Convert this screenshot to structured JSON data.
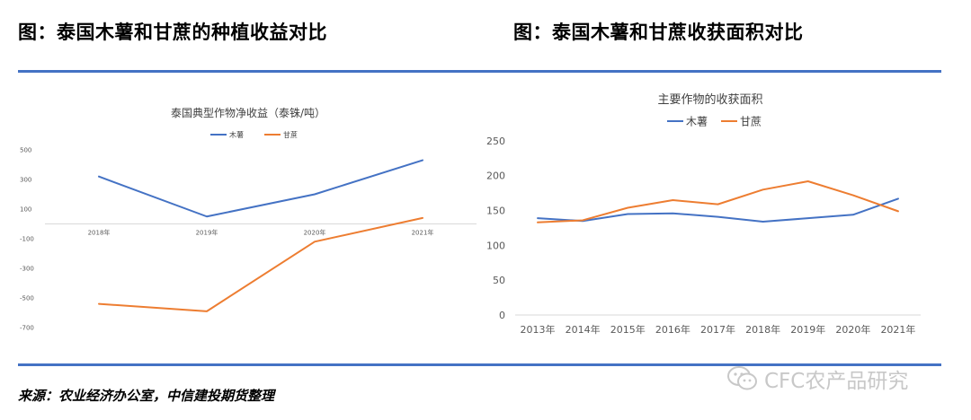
{
  "header": {
    "left_title": "图：泰国木薯和甘蔗的种植收益对比",
    "right_title": "图：泰国木薯和甘蔗收获面积对比"
  },
  "source_note": "来源：农业经济办公室，中信建投期货整理",
  "watermark": {
    "icon": "wechat-icon",
    "text": "CFC农产品研究"
  },
  "colors": {
    "series1": "#4472c4",
    "series2": "#ed7d31",
    "rule": "#4472c4"
  },
  "chart_data": [
    {
      "type": "line",
      "title": "泰国典型作物净收益（泰铢/吨）",
      "categories": [
        "2018年",
        "2019年",
        "2020年",
        "2021年"
      ],
      "yticks": [
        "500",
        "300",
        "100",
        "-100",
        "-300",
        "-500",
        "-700"
      ],
      "ylim": [
        -700,
        500
      ],
      "grid": false,
      "legend": "top-center",
      "series": [
        {
          "name": "木薯",
          "values": [
            320,
            50,
            200,
            430
          ]
        },
        {
          "name": "甘蔗",
          "values": [
            -540,
            -590,
            -120,
            40
          ]
        }
      ]
    },
    {
      "type": "line",
      "title": "主要作物的收获面积",
      "categories": [
        "2013年",
        "2014年",
        "2015年",
        "2016年",
        "2017年",
        "2018年",
        "2019年",
        "2020年",
        "2021年"
      ],
      "yticks": [
        "250",
        "200",
        "150",
        "100",
        "50",
        "0"
      ],
      "ylim": [
        0,
        250
      ],
      "grid": false,
      "legend": "top-center",
      "series": [
        {
          "name": "木薯",
          "values": [
            139,
            135,
            145,
            146,
            141,
            134,
            139,
            144,
            167
          ]
        },
        {
          "name": "甘蔗",
          "values": [
            133,
            136,
            154,
            165,
            159,
            180,
            192,
            172,
            149
          ]
        }
      ]
    }
  ]
}
